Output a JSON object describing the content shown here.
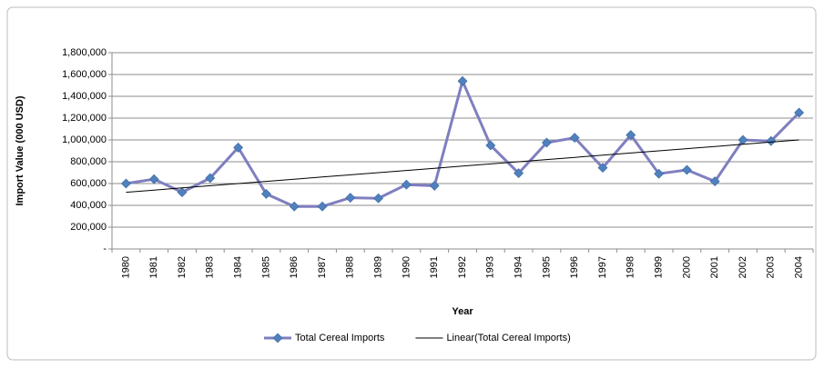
{
  "chart_data": {
    "type": "line",
    "x_label": "Year",
    "y_label": "Import Value (000 USD)",
    "categories": [
      "1980",
      "1981",
      "1982",
      "1983",
      "1984",
      "1985",
      "1986",
      "1987",
      "1988",
      "1989",
      "1990",
      "1991",
      "1992",
      "1993",
      "1994",
      "1995",
      "1996",
      "1997",
      "1998",
      "1999",
      "2000",
      "2001",
      "2002",
      "2003",
      "2004"
    ],
    "series": [
      {
        "name": "Total Cereal Imports",
        "color": "#7f7fbf",
        "marker": "diamond",
        "marker_color": "#4f81bd",
        "values": [
          600000,
          640000,
          520000,
          650000,
          930000,
          505000,
          390000,
          390000,
          470000,
          465000,
          590000,
          580000,
          1540000,
          950000,
          695000,
          975000,
          1020000,
          745000,
          1045000,
          690000,
          725000,
          620000,
          1000000,
          990000,
          1250000
        ]
      },
      {
        "name": "Linear(Total Cereal Imports)",
        "color": "#000000",
        "marker": "none",
        "values": [
          520000,
          540000,
          560000,
          580000,
          600000,
          620000,
          640000,
          660000,
          680000,
          700000,
          720000,
          740000,
          760000,
          780000,
          800000,
          820000,
          840000,
          860000,
          880000,
          900000,
          920000,
          940000,
          960000,
          980000,
          1000000
        ]
      }
    ],
    "ylim": [
      0,
      1800000
    ],
    "yticks": [
      {
        "value": 0,
        "label": "-"
      },
      {
        "value": 200000,
        "label": "200,000"
      },
      {
        "value": 400000,
        "label": "400,000"
      },
      {
        "value": 600000,
        "label": "600,000"
      },
      {
        "value": 800000,
        "label": "800,000"
      },
      {
        "value": 1000000,
        "label": "1,000,000"
      },
      {
        "value": 1200000,
        "label": "1,200,000"
      },
      {
        "value": 1400000,
        "label": "1,400,000"
      },
      {
        "value": 1600000,
        "label": "1,600,000"
      },
      {
        "value": 1800000,
        "label": "1,800,000"
      }
    ],
    "grid": true,
    "legend": "bottom"
  }
}
